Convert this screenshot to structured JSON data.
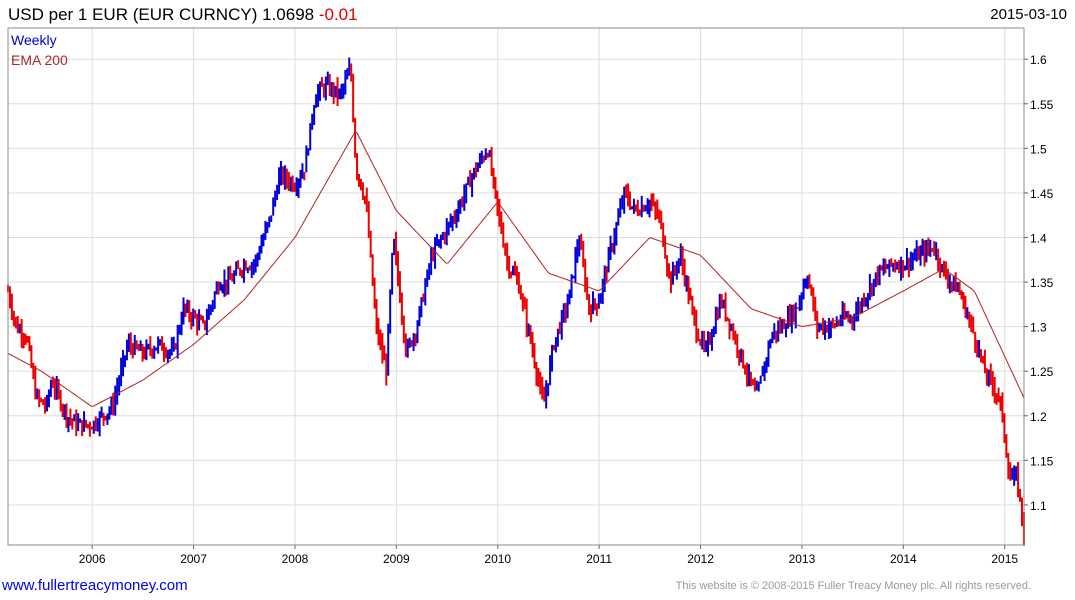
{
  "header": {
    "title": "USD per 1 EUR (EUR CURNCY)",
    "last": "1.0698",
    "change": "-0.01",
    "date": "2015-03-10"
  },
  "footer": {
    "link": "www.fullertreacymoney.com",
    "copyright": "This website is © 2008-2015 Fuller Treacy Money plc. All rights reserved."
  },
  "chart_data": {
    "type": "line",
    "title": "USD per 1 EUR (EUR CURNCY)",
    "legend": [
      {
        "name": "Weekly",
        "color": "#0000cc"
      },
      {
        "name": "EMA 200",
        "color": "#a52a2a"
      }
    ],
    "legend_placement": "top-left",
    "colors": {
      "up": "#0000dd",
      "down": "#ee0000",
      "ema": "#b22222",
      "grid": "#dddddd"
    },
    "xlim": [
      2005.17,
      2015.19
    ],
    "ylim": [
      1.055,
      1.635
    ],
    "x_ticks": [
      "2006",
      "2007",
      "2008",
      "2009",
      "2010",
      "2011",
      "2012",
      "2013",
      "2014",
      "2015"
    ],
    "y_ticks": [
      "1.1",
      "1.15",
      "1.2",
      "1.25",
      "1.3",
      "1.35",
      "1.4",
      "1.45",
      "1.5",
      "1.55",
      "1.6"
    ],
    "series": [
      {
        "name": "Weekly",
        "x": [
          2005.17,
          2005.25,
          2005.35,
          2005.45,
          2005.55,
          2005.6,
          2005.75,
          2005.85,
          2006.0,
          2006.1,
          2006.2,
          2006.35,
          2006.5,
          2006.65,
          2006.8,
          2006.9,
          2007.0,
          2007.1,
          2007.25,
          2007.35,
          2007.5,
          2007.6,
          2007.75,
          2007.85,
          2008.0,
          2008.1,
          2008.2,
          2008.3,
          2008.45,
          2008.55,
          2008.6,
          2008.7,
          2008.8,
          2008.9,
          2008.97,
          2009.1,
          2009.2,
          2009.35,
          2009.5,
          2009.6,
          2009.75,
          2009.9,
          2010.0,
          2010.1,
          2010.2,
          2010.35,
          2010.45,
          2010.55,
          2010.7,
          2010.8,
          2010.9,
          2011.0,
          2011.1,
          2011.25,
          2011.35,
          2011.5,
          2011.6,
          2011.7,
          2011.8,
          2011.95,
          2012.05,
          2012.2,
          2012.3,
          2012.45,
          2012.55,
          2012.7,
          2012.8,
          2012.95,
          2013.05,
          2013.15,
          2013.3,
          2013.4,
          2013.5,
          2013.6,
          2013.75,
          2013.9,
          2014.0,
          2014.15,
          2014.3,
          2014.4,
          2014.55,
          2014.7,
          2014.8,
          2014.95,
          2015.05,
          2015.12,
          2015.19
        ],
        "y": [
          1.34,
          1.3,
          1.29,
          1.22,
          1.21,
          1.24,
          1.2,
          1.19,
          1.19,
          1.2,
          1.21,
          1.28,
          1.27,
          1.28,
          1.27,
          1.32,
          1.31,
          1.3,
          1.35,
          1.35,
          1.37,
          1.37,
          1.42,
          1.47,
          1.46,
          1.48,
          1.56,
          1.57,
          1.56,
          1.59,
          1.48,
          1.44,
          1.3,
          1.25,
          1.4,
          1.27,
          1.3,
          1.38,
          1.41,
          1.43,
          1.47,
          1.5,
          1.43,
          1.37,
          1.35,
          1.27,
          1.21,
          1.28,
          1.33,
          1.4,
          1.32,
          1.33,
          1.38,
          1.45,
          1.43,
          1.44,
          1.42,
          1.35,
          1.38,
          1.3,
          1.27,
          1.33,
          1.3,
          1.25,
          1.22,
          1.29,
          1.3,
          1.32,
          1.36,
          1.3,
          1.3,
          1.31,
          1.31,
          1.33,
          1.36,
          1.37,
          1.37,
          1.38,
          1.39,
          1.36,
          1.34,
          1.29,
          1.25,
          1.22,
          1.13,
          1.13,
          1.07
        ]
      },
      {
        "name": "EMA 200",
        "x": [
          2005.17,
          2005.5,
          2006.0,
          2006.5,
          2007.0,
          2007.5,
          2008.0,
          2008.6,
          2009.0,
          2009.5,
          2010.0,
          2010.5,
          2011.0,
          2011.5,
          2012.0,
          2012.5,
          2013.0,
          2013.5,
          2014.0,
          2014.4,
          2014.7,
          2015.19
        ],
        "y": [
          1.27,
          1.25,
          1.21,
          1.24,
          1.28,
          1.33,
          1.4,
          1.52,
          1.43,
          1.37,
          1.44,
          1.36,
          1.34,
          1.4,
          1.38,
          1.32,
          1.3,
          1.31,
          1.34,
          1.365,
          1.34,
          1.22
        ]
      }
    ]
  }
}
